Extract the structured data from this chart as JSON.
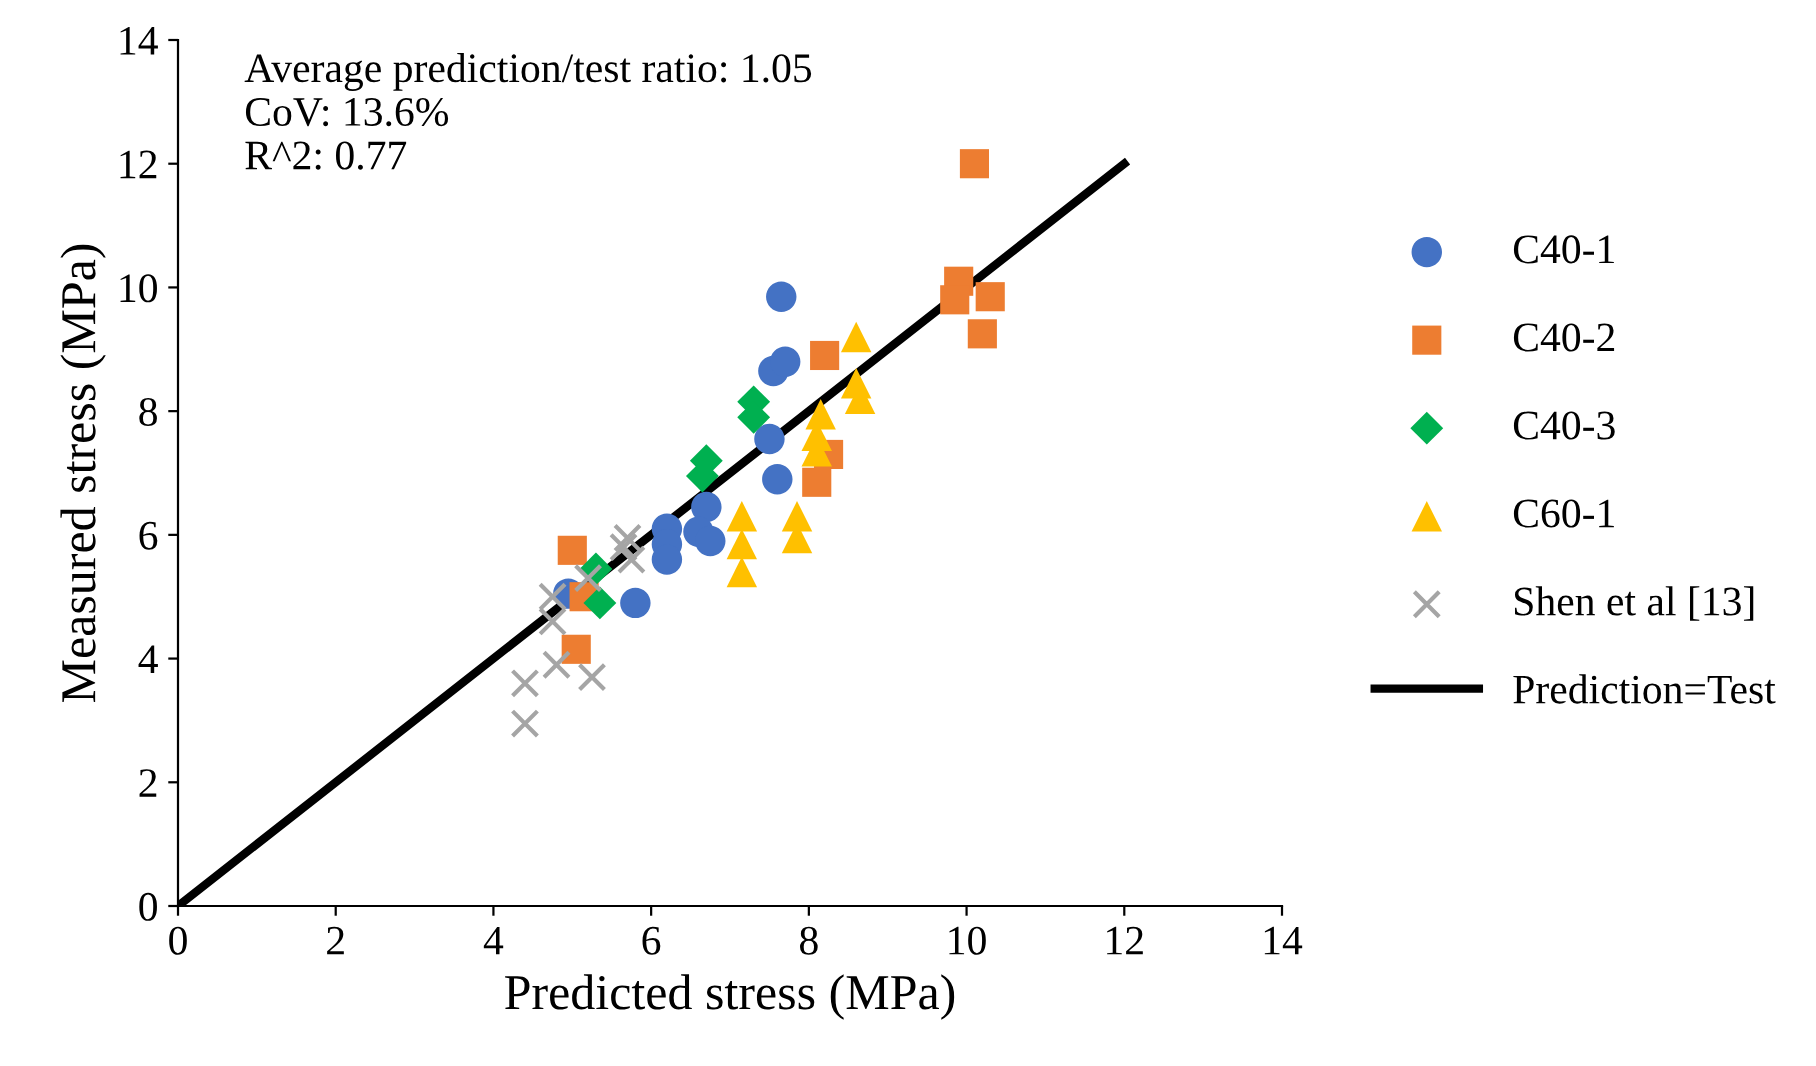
{
  "chart_data": {
    "type": "scatter",
    "xlabel": "Predicted stress (MPa)",
    "ylabel": "Measured stress (MPa)",
    "xlim": [
      0,
      14
    ],
    "ylim": [
      0,
      14
    ],
    "xticks": [
      0,
      2,
      4,
      6,
      8,
      10,
      12,
      14
    ],
    "yticks": [
      0,
      2,
      4,
      6,
      8,
      10,
      12,
      14
    ],
    "grid": false,
    "legend": "right",
    "annotations": [
      "Average prediction/test ratio: 1.05",
      "CoV: 13.6%",
      "R^2: 0.77"
    ],
    "series": [
      {
        "name": "C40-1",
        "color": "#4472c4",
        "marker": "circle",
        "x": [
          7.65,
          7.55,
          7.7,
          7.5,
          7.6,
          6.7,
          6.2,
          6.2,
          6.2,
          6.6,
          6.75,
          5.8,
          4.95
        ],
        "values": [
          9.85,
          8.65,
          8.8,
          7.55,
          6.9,
          6.45,
          6.1,
          5.85,
          5.6,
          6.05,
          5.9,
          4.9,
          5.05
        ]
      },
      {
        "name": "C40-2",
        "color": "#ed7d31",
        "marker": "square",
        "x": [
          10.1,
          9.9,
          9.85,
          10.3,
          10.2,
          8.2,
          8.25,
          8.1,
          5.0,
          5.15,
          5.05
        ],
        "values": [
          12.0,
          10.1,
          9.8,
          9.85,
          9.25,
          8.9,
          7.3,
          6.85,
          5.75,
          5.0,
          4.15
        ]
      },
      {
        "name": "C40-3",
        "color": "#00b050",
        "marker": "diamond",
        "x": [
          7.3,
          7.3,
          6.7,
          6.65,
          5.3,
          5.35
        ],
        "values": [
          8.15,
          7.9,
          7.2,
          6.95,
          5.45,
          4.9
        ]
      },
      {
        "name": "C60-1",
        "color": "#ffc000",
        "marker": "triangle",
        "x": [
          8.6,
          8.6,
          8.65,
          8.15,
          8.1,
          8.1,
          7.15,
          7.15,
          7.15,
          7.85,
          7.85
        ],
        "values": [
          9.2,
          8.45,
          8.2,
          7.95,
          7.6,
          7.35,
          6.3,
          5.85,
          5.4,
          6.3,
          5.95
        ]
      },
      {
        "name": "Shen et al [13]",
        "color": "#a5a5a5",
        "marker": "cross",
        "x": [
          4.4,
          4.4,
          4.75,
          4.75,
          4.8,
          5.25,
          5.2,
          5.7,
          5.75,
          5.65
        ],
        "values": [
          3.6,
          2.95,
          5.0,
          4.6,
          3.9,
          3.7,
          5.3,
          5.95,
          5.6,
          5.8
        ]
      },
      {
        "name": "Prediction=Test",
        "type": "line",
        "color": "#000000",
        "marker": "none",
        "x": [
          0,
          12
        ],
        "values": [
          0,
          12
        ]
      }
    ]
  }
}
